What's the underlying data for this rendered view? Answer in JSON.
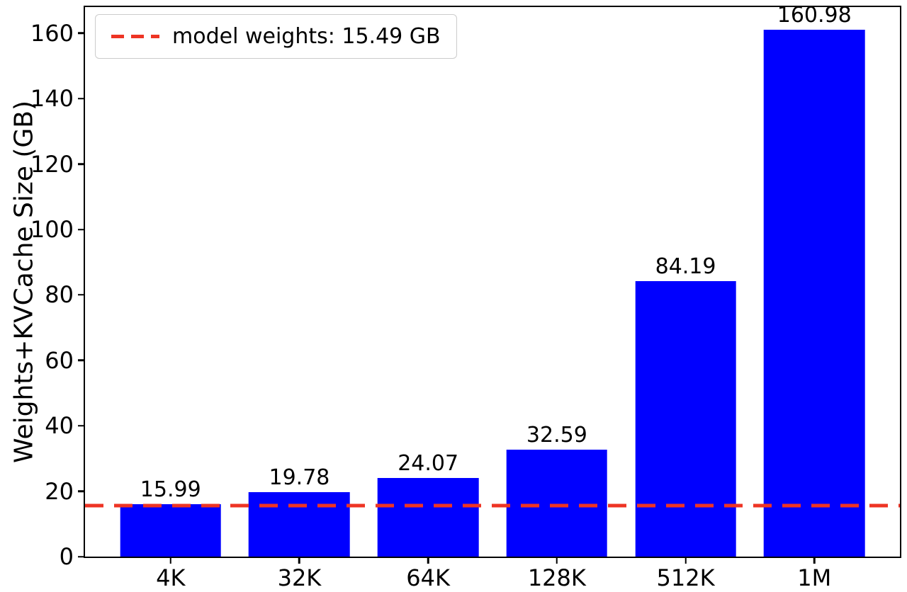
{
  "chart_data": {
    "type": "bar",
    "title": "",
    "xlabel": "",
    "ylabel": "Weights+KVCache Size (GB)",
    "categories": [
      "4K",
      "32K",
      "64K",
      "128K",
      "512K",
      "1M"
    ],
    "values": [
      15.99,
      19.78,
      24.07,
      32.59,
      84.19,
      160.98
    ],
    "bar_labels": [
      "15.99",
      "19.78",
      "24.07",
      "32.59",
      "84.19",
      "160.98"
    ],
    "yticks": [
      0,
      20,
      40,
      60,
      80,
      100,
      120,
      140,
      160
    ],
    "ylim": [
      0,
      168
    ],
    "grid": false,
    "legend_position": "upper left",
    "bar_color": "#0000ff",
    "reference_line": {
      "value": 15.49,
      "label": "model weights: 15.49 GB",
      "color": "#ee3424",
      "style": "dashed"
    }
  }
}
